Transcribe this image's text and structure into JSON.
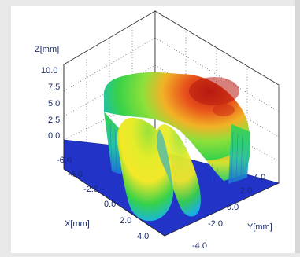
{
  "chart_data": {
    "type": "surface3d",
    "title": "",
    "axes": {
      "x": {
        "label": "X[mm]",
        "ticks": [
          "-6.0",
          "-4.0",
          "-2.0",
          "0.0",
          "2.0",
          "4.0"
        ],
        "range": [
          -6.0,
          4.0
        ]
      },
      "y": {
        "label": "Y[mm]",
        "ticks": [
          "4.0",
          "2.0",
          "0.0",
          "-2.0",
          "-4.0"
        ],
        "range": [
          -4.0,
          4.0
        ]
      },
      "z": {
        "label": "Z[mm]",
        "ticks": [
          "10.0",
          "7.5",
          "5.0",
          "2.5",
          "0.0"
        ],
        "range": [
          0.0,
          10.0
        ]
      }
    },
    "colormap": [
      "#1b2fd0",
      "#18b4ea",
      "#36d24a",
      "#f2e829",
      "#e8521b",
      "#b81a10"
    ],
    "base_color": "#2233c8",
    "grid": true
  }
}
